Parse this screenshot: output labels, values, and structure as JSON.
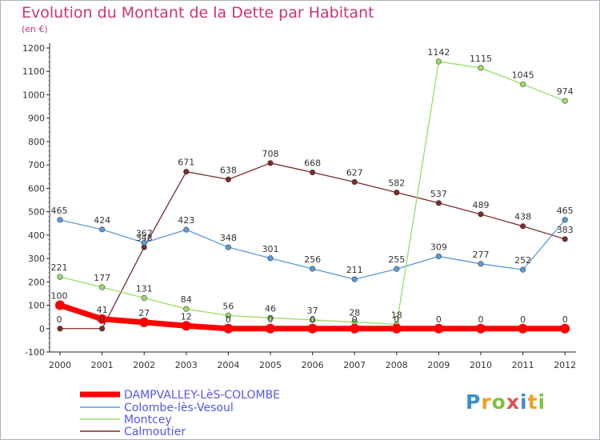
{
  "title": "Evolution du Montant de la Dette par Habitant",
  "subtitle": "(en €)",
  "logo": {
    "text": "Proxiti",
    "colors": [
      "#3a8fd0",
      "#f0a020",
      "#80c040",
      "#e05050",
      "#3a8fd0",
      "#f0a020",
      "#80c040"
    ]
  },
  "chart_data": {
    "type": "line",
    "title": "Evolution du Montant de la Dette par Habitant",
    "ylabel": "(en €)",
    "xlabel": "",
    "x": [
      2000,
      2001,
      2002,
      2003,
      2004,
      2005,
      2006,
      2007,
      2008,
      2009,
      2010,
      2011,
      2012
    ],
    "ylim": [
      -100,
      1200
    ],
    "yticks": [
      -100,
      0,
      100,
      200,
      300,
      400,
      500,
      600,
      700,
      800,
      900,
      1000,
      1100,
      1200
    ],
    "grid": false,
    "legend_position": "bottom-left",
    "series": [
      {
        "name": "DAMPVALLEY-LèS-COLOMBE",
        "color": "#ff0000",
        "values": [
          100,
          41,
          27,
          12,
          0,
          0,
          0,
          0,
          0,
          0,
          0,
          0,
          0
        ]
      },
      {
        "name": "Colombe-lès-Vesoul",
        "color": "#5b9bd5",
        "values": [
          465,
          424,
          367,
          423,
          348,
          301,
          256,
          211,
          255,
          309,
          277,
          252,
          465
        ]
      },
      {
        "name": "Montcey",
        "color": "#99dd66",
        "values": [
          221,
          177,
          131,
          84,
          56,
          46,
          37,
          28,
          18,
          1142,
          1115,
          1045,
          974
        ]
      },
      {
        "name": "Calmoutier",
        "color": "#7a2a2a",
        "values": [
          0,
          0,
          348,
          671,
          638,
          708,
          668,
          627,
          582,
          537,
          489,
          438,
          383
        ]
      }
    ]
  }
}
